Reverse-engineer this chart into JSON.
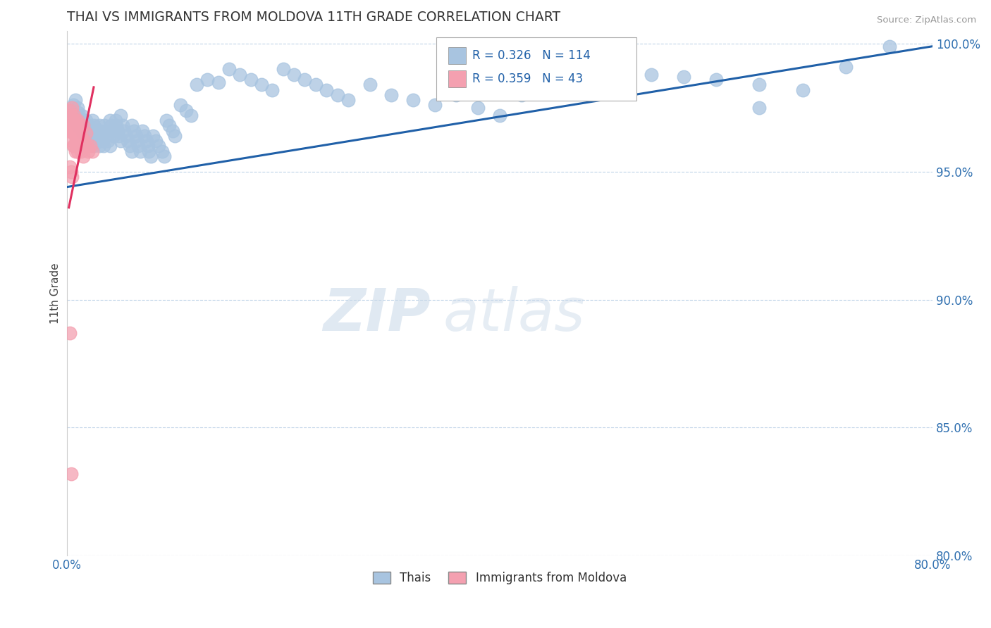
{
  "title": "THAI VS IMMIGRANTS FROM MOLDOVA 11TH GRADE CORRELATION CHART",
  "source": "Source: ZipAtlas.com",
  "ylabel": "11th Grade",
  "xmin": 0.0,
  "xmax": 0.8,
  "ymin": 0.8,
  "ymax": 1.005,
  "yticks": [
    0.8,
    0.85,
    0.9,
    0.95,
    1.0
  ],
  "ytick_labels": [
    "80.0%",
    "85.0%",
    "90.0%",
    "95.0%",
    "100.0%"
  ],
  "blue_R": 0.326,
  "blue_N": 114,
  "pink_R": 0.359,
  "pink_N": 43,
  "blue_color": "#a8c4e0",
  "pink_color": "#f4a0b0",
  "blue_line_color": "#2060a8",
  "pink_line_color": "#e03060",
  "blue_line_x": [
    0.0,
    0.8
  ],
  "blue_line_y": [
    0.944,
    0.999
  ],
  "pink_line_x": [
    0.002,
    0.025
  ],
  "pink_line_y": [
    0.936,
    0.983
  ],
  "legend_blue_label": "Thais",
  "legend_pink_label": "Immigrants from Moldova",
  "watermark_zip": "ZIP",
  "watermark_atlas": "atlas",
  "blue_scatter_x": [
    0.005,
    0.006,
    0.007,
    0.008,
    0.009,
    0.01,
    0.01,
    0.011,
    0.012,
    0.012,
    0.013,
    0.014,
    0.015,
    0.015,
    0.016,
    0.017,
    0.018,
    0.018,
    0.019,
    0.02,
    0.021,
    0.022,
    0.023,
    0.024,
    0.025,
    0.025,
    0.026,
    0.027,
    0.028,
    0.03,
    0.03,
    0.031,
    0.032,
    0.033,
    0.034,
    0.035,
    0.036,
    0.037,
    0.038,
    0.04,
    0.04,
    0.041,
    0.042,
    0.043,
    0.045,
    0.046,
    0.047,
    0.048,
    0.05,
    0.05,
    0.052,
    0.053,
    0.055,
    0.056,
    0.058,
    0.06,
    0.06,
    0.062,
    0.064,
    0.065,
    0.066,
    0.068,
    0.07,
    0.072,
    0.074,
    0.075,
    0.076,
    0.078,
    0.08,
    0.082,
    0.085,
    0.088,
    0.09,
    0.092,
    0.095,
    0.098,
    0.1,
    0.105,
    0.11,
    0.115,
    0.12,
    0.13,
    0.14,
    0.15,
    0.16,
    0.17,
    0.18,
    0.19,
    0.2,
    0.21,
    0.22,
    0.23,
    0.24,
    0.25,
    0.26,
    0.28,
    0.3,
    0.32,
    0.34,
    0.36,
    0.38,
    0.4,
    0.42,
    0.45,
    0.48,
    0.51,
    0.54,
    0.57,
    0.6,
    0.64,
    0.68,
    0.72,
    0.76,
    0.64
  ],
  "blue_scatter_y": [
    0.974,
    0.976,
    0.972,
    0.978,
    0.97,
    0.975,
    0.968,
    0.973,
    0.971,
    0.969,
    0.967,
    0.972,
    0.97,
    0.965,
    0.968,
    0.966,
    0.964,
    0.97,
    0.962,
    0.968,
    0.966,
    0.964,
    0.962,
    0.97,
    0.968,
    0.96,
    0.966,
    0.964,
    0.962,
    0.968,
    0.96,
    0.966,
    0.964,
    0.962,
    0.96,
    0.968,
    0.966,
    0.964,
    0.962,
    0.97,
    0.96,
    0.968,
    0.966,
    0.964,
    0.97,
    0.968,
    0.966,
    0.964,
    0.972,
    0.962,
    0.968,
    0.966,
    0.964,
    0.962,
    0.96,
    0.968,
    0.958,
    0.966,
    0.964,
    0.962,
    0.96,
    0.958,
    0.966,
    0.964,
    0.962,
    0.96,
    0.958,
    0.956,
    0.964,
    0.962,
    0.96,
    0.958,
    0.956,
    0.97,
    0.968,
    0.966,
    0.964,
    0.976,
    0.974,
    0.972,
    0.984,
    0.986,
    0.985,
    0.99,
    0.988,
    0.986,
    0.984,
    0.982,
    0.99,
    0.988,
    0.986,
    0.984,
    0.982,
    0.98,
    0.978,
    0.984,
    0.98,
    0.978,
    0.976,
    0.98,
    0.975,
    0.972,
    0.98,
    0.988,
    0.985,
    0.983,
    0.988,
    0.987,
    0.986,
    0.984,
    0.982,
    0.991,
    0.999,
    0.975
  ],
  "pink_scatter_x": [
    0.002,
    0.003,
    0.003,
    0.004,
    0.004,
    0.005,
    0.005,
    0.005,
    0.006,
    0.006,
    0.006,
    0.007,
    0.007,
    0.007,
    0.008,
    0.008,
    0.008,
    0.009,
    0.009,
    0.01,
    0.01,
    0.01,
    0.011,
    0.011,
    0.012,
    0.012,
    0.013,
    0.013,
    0.014,
    0.015,
    0.015,
    0.016,
    0.017,
    0.018,
    0.019,
    0.02,
    0.022,
    0.024,
    0.003,
    0.004,
    0.005,
    0.003,
    0.004
  ],
  "pink_scatter_y": [
    0.966,
    0.974,
    0.968,
    0.972,
    0.966,
    0.975,
    0.968,
    0.962,
    0.97,
    0.965,
    0.96,
    0.972,
    0.966,
    0.96,
    0.97,
    0.964,
    0.958,
    0.968,
    0.962,
    0.97,
    0.964,
    0.958,
    0.968,
    0.962,
    0.966,
    0.96,
    0.964,
    0.958,
    0.962,
    0.968,
    0.956,
    0.962,
    0.96,
    0.965,
    0.96,
    0.958,
    0.96,
    0.958,
    0.952,
    0.95,
    0.948,
    0.887,
    0.832
  ]
}
